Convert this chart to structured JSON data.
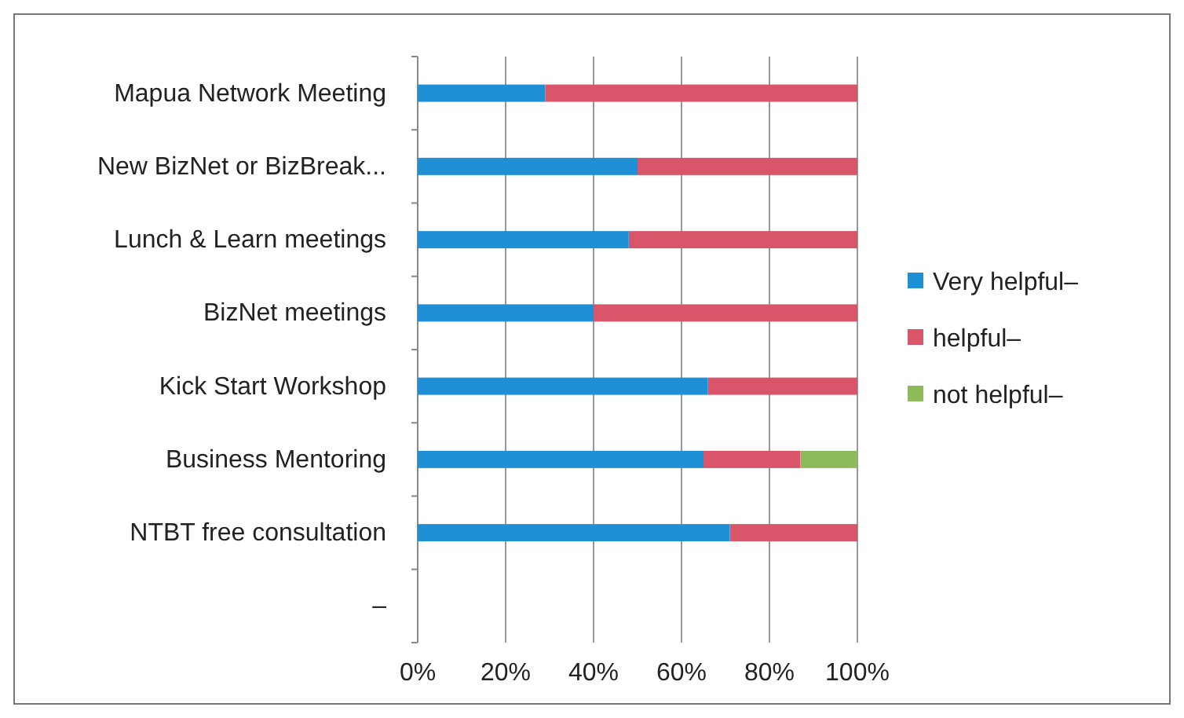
{
  "chart_data": {
    "type": "bar",
    "orientation": "horizontal",
    "stacked": true,
    "categories": [
      "Mapua Network Meeting",
      "New BizNet or BizBreak...",
      "Lunch & Learn meetings",
      "BizNet meetings",
      "Kick Start Workshop",
      "Business Mentoring",
      "NTBT free consultation",
      "–"
    ],
    "series": [
      {
        "name": "Very helpful–",
        "color": "#1f8fd6",
        "values": [
          29,
          50,
          48,
          40,
          66,
          65,
          71,
          null
        ]
      },
      {
        "name": "helpful–",
        "color": "#d9566a",
        "values": [
          71,
          50,
          52,
          60,
          34,
          22,
          29,
          null
        ]
      },
      {
        "name": "not helpful–",
        "color": "#8dbb5a",
        "values": [
          0,
          0,
          0,
          0,
          0,
          13,
          0,
          null
        ]
      }
    ],
    "xlim": [
      0,
      100
    ],
    "xticks": [
      {
        "value": 0,
        "label": "0%"
      },
      {
        "value": 20,
        "label": "20%"
      },
      {
        "value": 40,
        "label": "40%"
      },
      {
        "value": 60,
        "label": "60%"
      },
      {
        "value": 80,
        "label": "80%"
      },
      {
        "value": 100,
        "label": "100%"
      }
    ],
    "grid": "x",
    "legend": "right"
  }
}
